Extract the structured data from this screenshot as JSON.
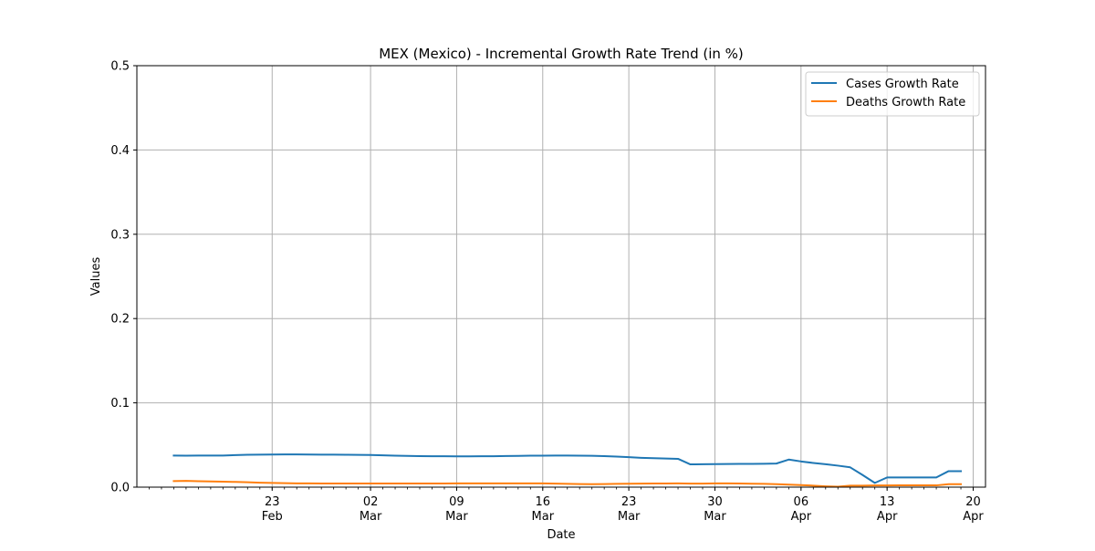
{
  "chart_data": {
    "type": "line",
    "title": "MEX (Mexico) - Incremental Growth Rate Trend (in %)",
    "xlabel": "Date",
    "ylabel": "Values",
    "ylim": [
      0,
      0.5
    ],
    "xlim": [
      "2020-02-12",
      "2020-04-21"
    ],
    "grid": true,
    "legend_position": "top-right",
    "x": [
      "2020-02-15",
      "2020-02-16",
      "2020-02-17",
      "2020-02-18",
      "2020-02-19",
      "2020-02-20",
      "2020-02-21",
      "2020-02-22",
      "2020-02-23",
      "2020-02-24",
      "2020-02-25",
      "2020-02-26",
      "2020-02-27",
      "2020-02-28",
      "2020-02-29",
      "2020-03-01",
      "2020-03-02",
      "2020-03-03",
      "2020-03-04",
      "2020-03-05",
      "2020-03-06",
      "2020-03-07",
      "2020-03-08",
      "2020-03-09",
      "2020-03-10",
      "2020-03-11",
      "2020-03-12",
      "2020-03-13",
      "2020-03-14",
      "2020-03-15",
      "2020-03-16",
      "2020-03-17",
      "2020-03-18",
      "2020-03-19",
      "2020-03-20",
      "2020-03-21",
      "2020-03-22",
      "2020-03-23",
      "2020-03-24",
      "2020-03-25",
      "2020-03-26",
      "2020-03-27",
      "2020-03-28",
      "2020-03-29",
      "2020-03-30",
      "2020-03-31",
      "2020-04-01",
      "2020-04-02",
      "2020-04-03",
      "2020-04-04",
      "2020-04-05",
      "2020-04-06",
      "2020-04-07",
      "2020-04-08",
      "2020-04-09",
      "2020-04-10",
      "2020-04-11",
      "2020-04-12",
      "2020-04-13",
      "2020-04-14",
      "2020-04-15",
      "2020-04-16",
      "2020-04-17",
      "2020-04-18",
      "2020-04-19"
    ],
    "series": [
      {
        "name": "Cases Growth Rate",
        "color": "#1f77b4",
        "values": [
          0.0375,
          0.0374,
          0.0375,
          0.0375,
          0.0375,
          0.038,
          0.0384,
          0.0386,
          0.0387,
          0.0388,
          0.0388,
          0.0387,
          0.0386,
          0.0385,
          0.0384,
          0.0383,
          0.0382,
          0.0378,
          0.0374,
          0.037,
          0.0368,
          0.0367,
          0.0366,
          0.0365,
          0.0365,
          0.0366,
          0.0367,
          0.0369,
          0.0371,
          0.0373,
          0.0374,
          0.0375,
          0.0375,
          0.0374,
          0.0372,
          0.0368,
          0.0363,
          0.0356,
          0.0348,
          0.0343,
          0.0339,
          0.0336,
          0.027,
          0.0272,
          0.0273,
          0.0274,
          0.0276,
          0.0276,
          0.0277,
          0.028,
          0.0327,
          0.0305,
          0.0287,
          0.0272,
          0.0255,
          0.0235,
          0.0145,
          0.005,
          0.0115,
          0.0115,
          0.0115,
          0.0115,
          0.0115,
          0.019,
          0.019
        ]
      },
      {
        "name": "Deaths Growth Rate",
        "color": "#ff7f0e",
        "values": [
          0.0072,
          0.0075,
          0.007,
          0.0068,
          0.0065,
          0.0062,
          0.0058,
          0.0053,
          0.005,
          0.0047,
          0.0045,
          0.0044,
          0.0043,
          0.0043,
          0.0043,
          0.0043,
          0.0043,
          0.0043,
          0.0043,
          0.0043,
          0.0043,
          0.0043,
          0.0043,
          0.0044,
          0.0044,
          0.0045,
          0.0045,
          0.0045,
          0.0045,
          0.0045,
          0.0044,
          0.0042,
          0.0039,
          0.0037,
          0.0035,
          0.0036,
          0.0039,
          0.0041,
          0.0042,
          0.0043,
          0.0043,
          0.0044,
          0.0042,
          0.0042,
          0.0045,
          0.0045,
          0.0043,
          0.0041,
          0.0039,
          0.0035,
          0.003,
          0.0025,
          0.0018,
          0.001,
          0.0005,
          0.0018,
          0.0018,
          0.002,
          0.002,
          0.0021,
          0.0021,
          0.0021,
          0.0021,
          0.0035,
          0.0035
        ]
      }
    ],
    "yticks": [
      "0.0",
      "0.1",
      "0.2",
      "0.3",
      "0.4",
      "0.5"
    ],
    "xticks": [
      {
        "date": "2020-02-23",
        "day": "23",
        "month": "Feb"
      },
      {
        "date": "2020-03-02",
        "day": "02",
        "month": "Mar"
      },
      {
        "date": "2020-03-09",
        "day": "09",
        "month": "Mar"
      },
      {
        "date": "2020-03-16",
        "day": "16",
        "month": "Mar"
      },
      {
        "date": "2020-03-23",
        "day": "23",
        "month": "Mar"
      },
      {
        "date": "2020-03-30",
        "day": "30",
        "month": "Mar"
      },
      {
        "date": "2020-04-06",
        "day": "06",
        "month": "Apr"
      },
      {
        "date": "2020-04-13",
        "day": "13",
        "month": "Apr"
      },
      {
        "date": "2020-04-20",
        "day": "20",
        "month": "Apr"
      }
    ]
  }
}
